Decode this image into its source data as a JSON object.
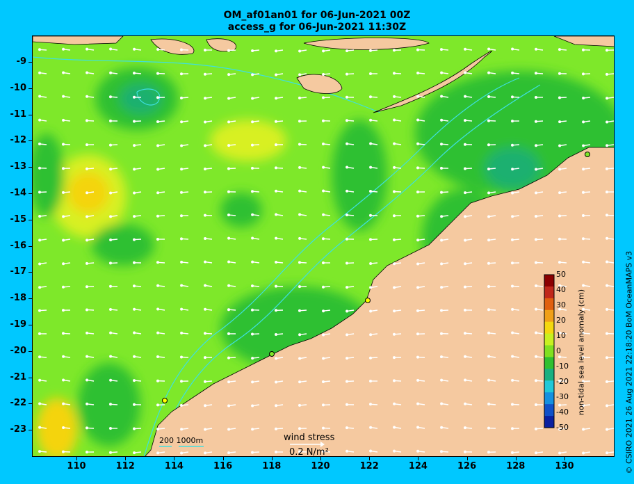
{
  "title_line1": "OM_af01an01 for 06-Jun-2021 00Z",
  "title_line2": "access_g for 06-Jun-2021 11:30Z",
  "credit": "© CSIRO 2021  26 Aug 2021 22:18:20 BoM OceanMAPS v3",
  "y_ticks": [
    "-9",
    "-10",
    "-11",
    "-12",
    "-13",
    "-14",
    "-15",
    "-16",
    "-17",
    "-18",
    "-19",
    "-20",
    "-21",
    "-22",
    "-23"
  ],
  "x_ticks": [
    "110",
    "112",
    "114",
    "116",
    "118",
    "120",
    "122",
    "124",
    "126",
    "128",
    "130"
  ],
  "colorbar": {
    "label": "non-tidal sea level anomaly (cm)",
    "ticks": [
      "50",
      "40",
      "30",
      "20",
      "10",
      "0",
      "-10",
      "-20",
      "-30",
      "-40",
      "-50"
    ],
    "colors": [
      "#8b0000",
      "#c0281a",
      "#e06010",
      "#f0a018",
      "#f4d80e",
      "#c8f020",
      "#80e020",
      "#30c030",
      "#1ab080",
      "#20c8d8",
      "#1490e0",
      "#1050c8",
      "#0a20a0"
    ]
  },
  "wind_stress": {
    "label": "wind stress",
    "value": "0.2 N/m²"
  },
  "scale": {
    "label": "200  1000m"
  },
  "map_colors": {
    "land": "#f5c9a0",
    "ocean_base": "#7ee82a",
    "contour": "#3ee0e0",
    "frame_bg": "#00c8ff"
  }
}
